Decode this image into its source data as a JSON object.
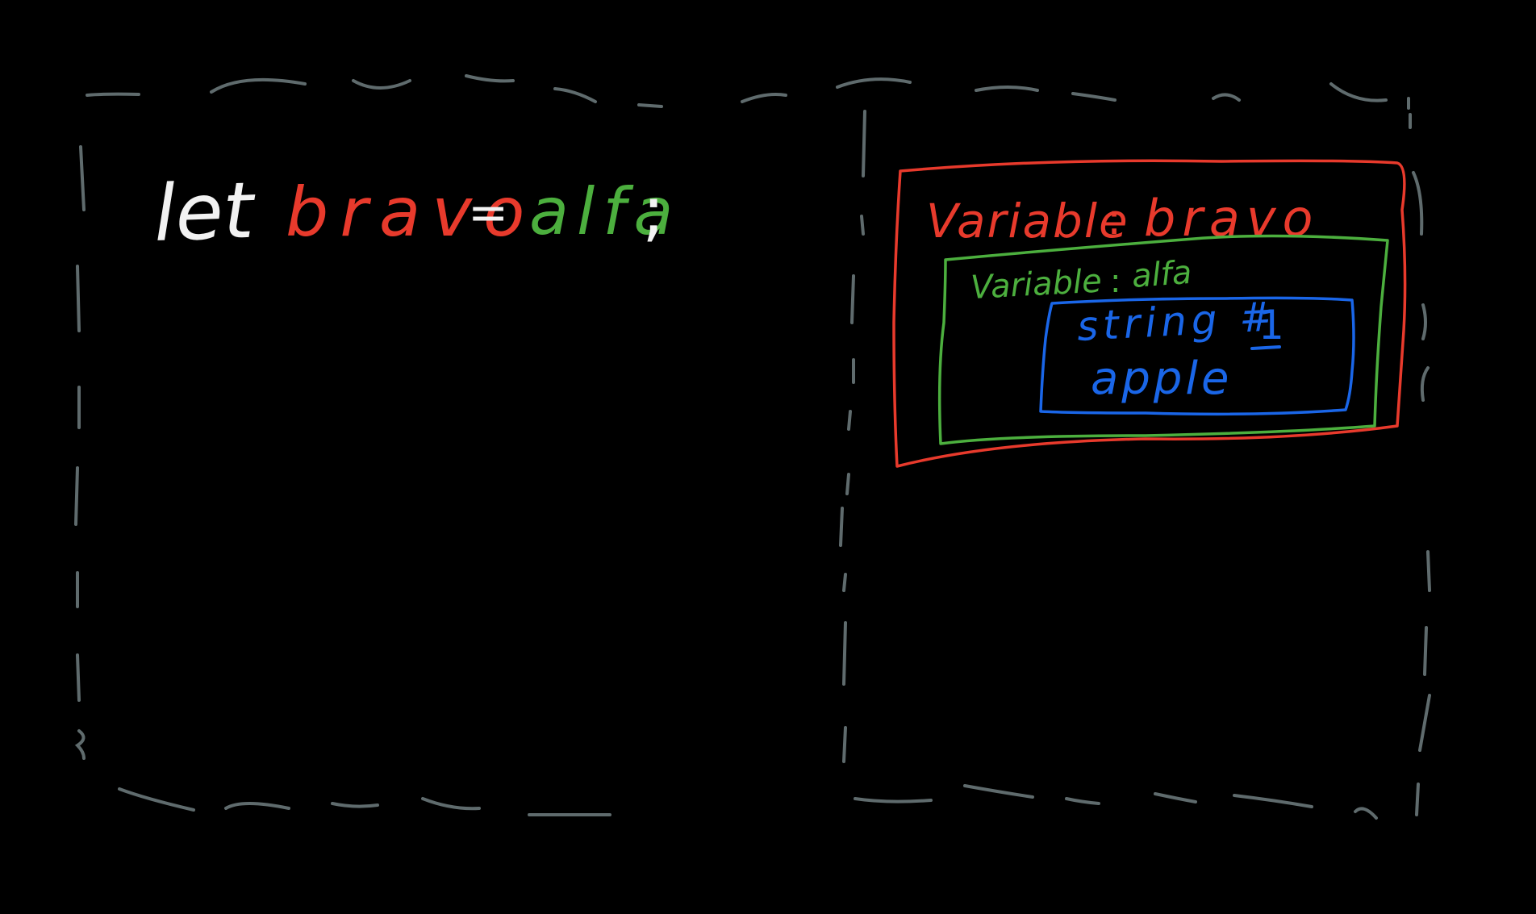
{
  "colors": {
    "background": "#000000",
    "frame": "#5f6b6d",
    "keyword": "#f2f2f2",
    "variable_bravo": "#e83a2c",
    "variable_alfa": "#4caf3e",
    "string_value": "#1a66e8"
  },
  "code": {
    "keyword": "let",
    "variable": "bravo",
    "operator": "=",
    "reference": "alfa",
    "terminator": ";"
  },
  "memory": {
    "outer_box": {
      "label_prefix": "Variable",
      "separator": ":",
      "name": "bravo"
    },
    "inner_box": {
      "label_prefix": "Variable",
      "separator": ":",
      "name": "alfa"
    },
    "value_box": {
      "type_label": "string #",
      "id": "1",
      "value": "apple"
    }
  }
}
